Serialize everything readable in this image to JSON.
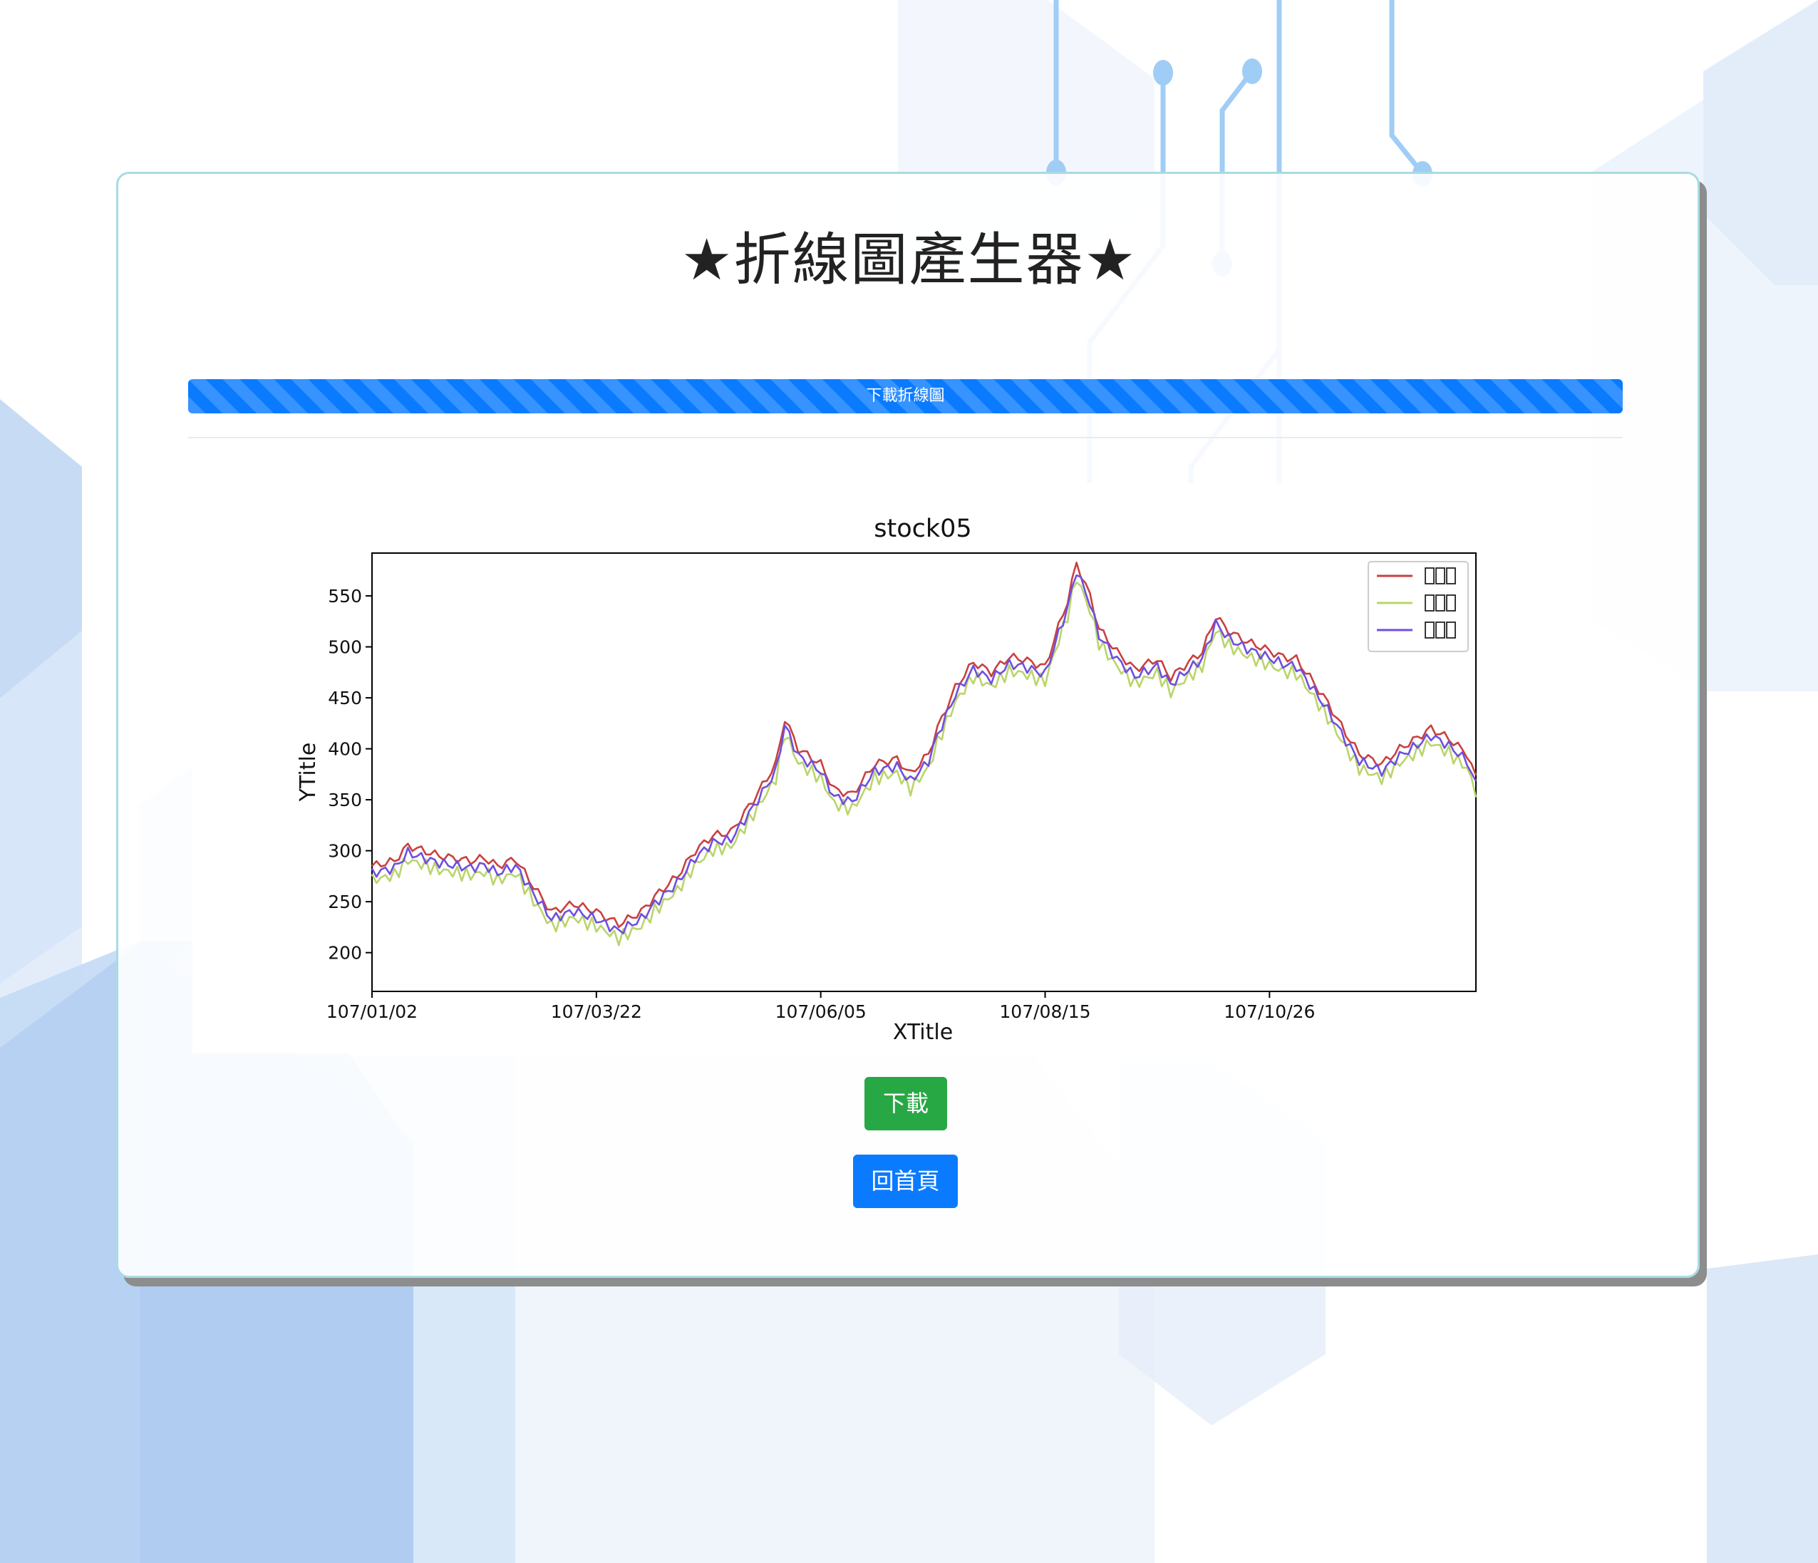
{
  "page": {
    "title": "★折線圖產生器★",
    "progress_label": "下載折線圖",
    "download_button": "下載",
    "home_button": "回首頁"
  },
  "colors": {
    "progress": "#0a7bff",
    "download_button": "#28a745",
    "home_button": "#0a7bff",
    "card_border": "#a9dbe3"
  },
  "chart_data": {
    "type": "line",
    "title": "stock05",
    "xlabel": "XTitle",
    "ylabel": "YTitle",
    "ylim": [
      162,
      592
    ],
    "yticks": [
      200,
      250,
      300,
      350,
      400,
      450,
      500,
      550
    ],
    "xticks": [
      "107/01/02",
      "107/03/22",
      "107/06/05",
      "107/08/15",
      "107/10/26"
    ],
    "xtick_index": [
      0,
      50,
      100,
      150,
      200
    ],
    "n_points": 247,
    "legend_position": "top-right",
    "grid": false,
    "series": [
      {
        "color": "#c8413f",
        "keypoints": [
          [
            0,
            285
          ],
          [
            5,
            290
          ],
          [
            8,
            305
          ],
          [
            15,
            295
          ],
          [
            22,
            290
          ],
          [
            25,
            293
          ],
          [
            28,
            285
          ],
          [
            32,
            292
          ],
          [
            36,
            265
          ],
          [
            40,
            240
          ],
          [
            45,
            248
          ],
          [
            50,
            240
          ],
          [
            55,
            228
          ],
          [
            60,
            240
          ],
          [
            63,
            255
          ],
          [
            68,
            275
          ],
          [
            72,
            300
          ],
          [
            76,
            315
          ],
          [
            80,
            318
          ],
          [
            85,
            350
          ],
          [
            90,
            385
          ],
          [
            92,
            430
          ],
          [
            95,
            400
          ],
          [
            100,
            385
          ],
          [
            103,
            360
          ],
          [
            107,
            355
          ],
          [
            112,
            385
          ],
          [
            117,
            390
          ],
          [
            120,
            375
          ],
          [
            124,
            395
          ],
          [
            126,
            420
          ],
          [
            130,
            460
          ],
          [
            134,
            485
          ],
          [
            138,
            475
          ],
          [
            142,
            490
          ],
          [
            145,
            488
          ],
          [
            150,
            480
          ],
          [
            153,
            520
          ],
          [
            155,
            545
          ],
          [
            157,
            582
          ],
          [
            160,
            550
          ],
          [
            162,
            518
          ],
          [
            166,
            495
          ],
          [
            170,
            478
          ],
          [
            175,
            488
          ],
          [
            178,
            470
          ],
          [
            182,
            485
          ],
          [
            185,
            495
          ],
          [
            188,
            530
          ],
          [
            191,
            515
          ],
          [
            195,
            505
          ],
          [
            198,
            500
          ],
          [
            203,
            490
          ],
          [
            206,
            488
          ],
          [
            209,
            470
          ],
          [
            213,
            445
          ],
          [
            217,
            415
          ],
          [
            220,
            395
          ],
          [
            225,
            385
          ],
          [
            229,
            400
          ],
          [
            232,
            408
          ],
          [
            236,
            420
          ],
          [
            240,
            410
          ],
          [
            244,
            395
          ],
          [
            247,
            360
          ]
        ],
        "note_offsets": "approximate trace"
      }
    ]
  }
}
